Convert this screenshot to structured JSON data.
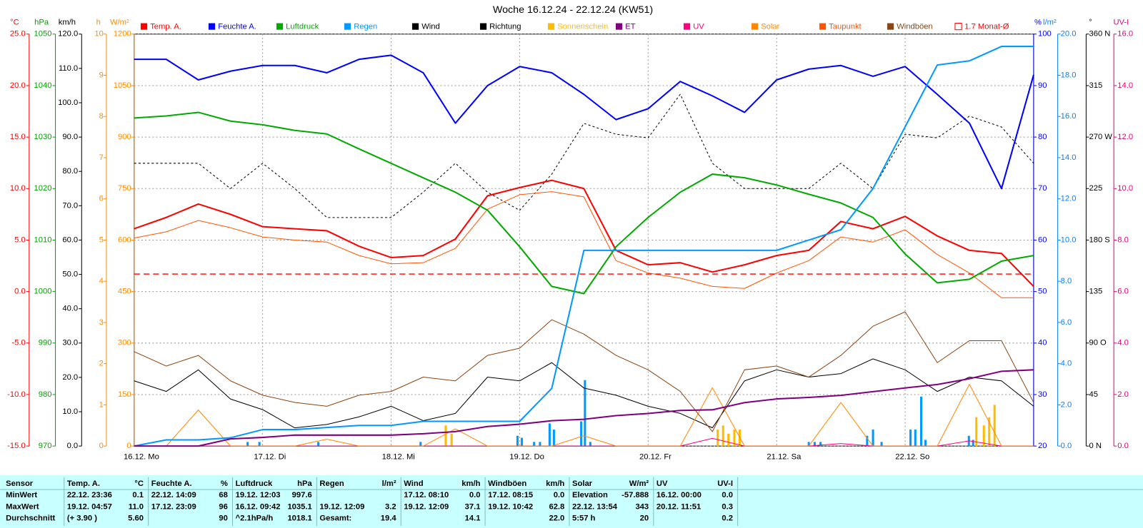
{
  "chart_data": {
    "type": "line",
    "title": "Woche 16.12.24 - 22.12.24 (KW51)",
    "xlim": [
      0,
      168
    ],
    "xticks": [
      {
        "value": 0,
        "label": "16.12. Mo"
      },
      {
        "value": 24,
        "label": "17.12. Di"
      },
      {
        "value": 48,
        "label": "18.12. Mi"
      },
      {
        "value": 72,
        "label": "19.12. Do"
      },
      {
        "value": 96,
        "label": "20.12. Fr"
      },
      {
        "value": 120,
        "label": "21.12. Sa"
      },
      {
        "value": 144,
        "label": "22.12. So"
      }
    ],
    "grid": true,
    "axes": [
      {
        "unit": "°C",
        "color": "#ff0000",
        "lim": [
          -15,
          25
        ],
        "ticks": [
          {
            "value": -15,
            "label": "-15.0"
          },
          {
            "value": -10,
            "label": "-10.0"
          },
          {
            "value": -5,
            "label": "-5.0"
          },
          {
            "value": 0,
            "label": "0.0"
          },
          {
            "value": 5,
            "label": "5.0"
          },
          {
            "value": 10,
            "label": "10.0"
          },
          {
            "value": 15,
            "label": "15.0"
          },
          {
            "value": 20,
            "label": "20.0"
          },
          {
            "value": 25,
            "label": "25.0"
          }
        ]
      },
      {
        "unit": "hPa",
        "color": "#00a000",
        "lim": [
          970,
          1050
        ],
        "ticks": [
          970,
          980,
          990,
          1000,
          1010,
          1020,
          1030,
          1040,
          1050
        ]
      },
      {
        "unit": "km/h",
        "color": "#000000",
        "lim": [
          0,
          120
        ],
        "ticks": [
          {
            "value": 0,
            "label": "0.0"
          },
          {
            "value": 10,
            "label": "10.0"
          },
          {
            "value": 20,
            "label": "20.0"
          },
          {
            "value": 30,
            "label": "30.0"
          },
          {
            "value": 40,
            "label": "40.0"
          },
          {
            "value": 50,
            "label": "50.0"
          },
          {
            "value": 60,
            "label": "60.0"
          },
          {
            "value": 70,
            "label": "70.0"
          },
          {
            "value": 80,
            "label": "80.0"
          },
          {
            "value": 90,
            "label": "90.0"
          },
          {
            "value": 100,
            "label": "100.0"
          },
          {
            "value": 110,
            "label": "110.0"
          },
          {
            "value": 120,
            "label": "120.0"
          }
        ]
      },
      {
        "unit": "h",
        "color": "#ff8c00",
        "lim": [
          0,
          10
        ],
        "ticks": [
          0,
          1,
          2,
          3,
          4,
          5,
          6,
          7,
          8,
          9,
          10
        ]
      },
      {
        "unit": "W/m²",
        "color": "#ff8c00",
        "lim": [
          0,
          1200
        ],
        "ticks": [
          0,
          150,
          300,
          450,
          600,
          750,
          900,
          1050,
          1200
        ]
      },
      {
        "unit": "%",
        "color": "#0000ff",
        "lim": [
          20,
          100
        ],
        "ticks": [
          20,
          30,
          40,
          50,
          60,
          70,
          80,
          90,
          100
        ]
      },
      {
        "unit": "l/m²",
        "color": "#0080ff",
        "lim": [
          0,
          20
        ],
        "ticks": [
          {
            "value": 0,
            "label": "0.0"
          },
          {
            "value": 2,
            "label": "2.0"
          },
          {
            "value": 4,
            "label": "4.0"
          },
          {
            "value": 6,
            "label": "6.0"
          },
          {
            "value": 8,
            "label": "8.0"
          },
          {
            "value": 10,
            "label": "10.0"
          },
          {
            "value": 12,
            "label": "12.0"
          },
          {
            "value": 14,
            "label": "14.0"
          },
          {
            "value": 16,
            "label": "16.0"
          },
          {
            "value": 18,
            "label": "18.0"
          },
          {
            "value": 20,
            "label": "20.0"
          }
        ]
      },
      {
        "unit": "°",
        "color": "#000000",
        "lim": [
          0,
          360
        ],
        "ticks": [
          {
            "value": 0,
            "label": "0 N"
          },
          45,
          {
            "value": 90,
            "label": "90 O"
          },
          135,
          {
            "value": 180,
            "label": "180 S"
          },
          225,
          {
            "value": 270,
            "label": "270 W"
          },
          315,
          {
            "value": 360,
            "label": "360 N"
          }
        ]
      },
      {
        "unit": "UV-I",
        "color": "#e0007f",
        "lim": [
          0,
          16
        ],
        "ticks": [
          {
            "value": 0,
            "label": "0.0"
          },
          {
            "value": 2,
            "label": "2.0"
          },
          {
            "value": 4,
            "label": "4.0"
          },
          {
            "value": 6,
            "label": "6.0"
          },
          {
            "value": 8,
            "label": "8.0"
          },
          {
            "value": 10,
            "label": "10.0"
          },
          {
            "value": 12,
            "label": "12.0"
          },
          {
            "value": 14,
            "label": "14.0"
          },
          {
            "value": 16,
            "label": "16.0"
          }
        ]
      }
    ],
    "x": [
      0,
      6,
      12,
      18,
      24,
      30,
      36,
      42,
      48,
      54,
      60,
      66,
      72,
      78,
      84,
      90,
      96,
      102,
      108,
      114,
      120,
      126,
      132,
      138,
      144,
      150,
      156,
      162,
      168
    ],
    "series": [
      {
        "name": "Temp. A.",
        "color": "#ff0000",
        "axis": 0,
        "style": "line",
        "width": 2,
        "values": [
          6.1,
          7.2,
          8.5,
          7.5,
          6.3,
          6.1,
          5.9,
          4.4,
          3.3,
          3.5,
          5.1,
          9.3,
          10.1,
          10.8,
          10.0,
          4.0,
          2.6,
          2.8,
          1.9,
          2.6,
          3.5,
          4.0,
          6.8,
          6.1,
          7.3,
          5.4,
          4.0,
          3.7,
          0.5
        ]
      },
      {
        "name": "Feuchte A.",
        "color": "#0000ff",
        "axis": 5,
        "style": "line",
        "width": 2,
        "values": [
          95.1,
          95.1,
          91.1,
          92.8,
          93.9,
          93.9,
          92.5,
          95.1,
          95.9,
          92.5,
          82.7,
          90.0,
          93.7,
          92.5,
          88.3,
          83.4,
          85.5,
          90.8,
          88.0,
          84.8,
          91.1,
          93.2,
          93.9,
          91.8,
          93.7,
          88.3,
          82.7,
          70.0,
          92.1
        ]
      },
      {
        "name": "Luftdruck",
        "color": "#00aa00",
        "axis": 1,
        "style": "line",
        "width": 2,
        "values": [
          1033.7,
          1034.1,
          1034.8,
          1033.1,
          1032.4,
          1031.3,
          1030.6,
          1027.7,
          1024.9,
          1022.1,
          1019.3,
          1015.8,
          1008.7,
          1001.0,
          999.6,
          1008.7,
          1014.4,
          1019.3,
          1022.8,
          1022.1,
          1020.7,
          1018.9,
          1017.2,
          1014.4,
          1007.3,
          1001.7,
          1002.4,
          1005.9,
          1007.0
        ]
      },
      {
        "name": "Regen",
        "color": "#0099ff",
        "axis": 6,
        "style": "line",
        "width": 2,
        "values": [
          0,
          0.3,
          0.3,
          0.4,
          0.8,
          0.8,
          0.9,
          1.0,
          1.0,
          1.2,
          1.2,
          1.2,
          1.2,
          2.8,
          9.5,
          9.5,
          9.5,
          9.5,
          9.5,
          9.5,
          9.5,
          10.0,
          10.5,
          12.5,
          15.5,
          18.5,
          18.7,
          19.4,
          19.4
        ],
        "bars_x": [
          21.2,
          23.4,
          34.4,
          53.5,
          71.6,
          72.4,
          74.7,
          75.8,
          77.6,
          78.4,
          83.5,
          84.2,
          85.2,
          126,
          127.1,
          128.2,
          136.9,
          138,
          139.6,
          145,
          145.9,
          147,
          147.8,
          155.9,
          156.7
        ],
        "bars": [
          0.2,
          0.2,
          0.2,
          0.2,
          0.5,
          0.4,
          0.2,
          0.2,
          1.1,
          0.8,
          1.2,
          3.2,
          0.2,
          0.2,
          0.2,
          0.2,
          0.5,
          0.8,
          0.2,
          0.8,
          0.8,
          2.4,
          0.3,
          0.5,
          0.3
        ]
      },
      {
        "name": "Wind",
        "color": "#000000",
        "axis": 2,
        "style": "line",
        "width": 1,
        "values": [
          19.0,
          15.9,
          22.2,
          13.7,
          10.6,
          5.3,
          6.3,
          8.5,
          11.6,
          7.4,
          9.5,
          20.1,
          19.0,
          24.3,
          16.9,
          14.8,
          11.6,
          9.5,
          5.3,
          19.0,
          22.2,
          20.1,
          21.1,
          25.4,
          22.2,
          15.9,
          20.1,
          19.0,
          11.6
        ]
      },
      {
        "name": "Richtung",
        "color": "#000000",
        "axis": 7,
        "style": "dashed",
        "width": 1,
        "values": [
          247.1,
          247.1,
          247.1,
          225.0,
          247.1,
          225.0,
          199.7,
          199.7,
          199.7,
          221.8,
          247.1,
          221.8,
          206.0,
          237.6,
          282.0,
          272.5,
          269.3,
          307.4,
          247.1,
          225.0,
          225.0,
          225.0,
          247.1,
          225.0,
          272.5,
          269.3,
          288.3,
          278.8,
          247.1
        ]
      },
      {
        "name": "Sonnenschein",
        "color": "#ffbb00",
        "axis": 3,
        "style": "bars",
        "width": 1,
        "bars_x": [
          58.2,
          59.3,
          109,
          110,
          111,
          112.1,
          113.1,
          157.3,
          158.7,
          159.7,
          160.7
        ],
        "bars": [
          0.5,
          0.3,
          0.4,
          0.5,
          0.3,
          0.4,
          0.4,
          0.7,
          0.5,
          0.7,
          1.0
        ]
      },
      {
        "name": "ET",
        "color": "#800080",
        "axis": 6,
        "style": "line",
        "width": 2,
        "values": [
          0,
          0,
          0,
          0.35,
          0.42,
          0.53,
          0.53,
          0.53,
          0.53,
          0.6,
          0.7,
          0.95,
          1.06,
          1.23,
          1.3,
          1.48,
          1.58,
          1.73,
          1.76,
          2.11,
          2.29,
          2.36,
          2.46,
          2.64,
          2.82,
          2.99,
          3.27,
          3.63,
          3.7
        ]
      },
      {
        "name": "UV",
        "color": "#ff0080",
        "axis": 8,
        "style": "line",
        "width": 1,
        "values": [
          0,
          0,
          0,
          0,
          0,
          0,
          0,
          0,
          0,
          0,
          0,
          0,
          0,
          0,
          0,
          0,
          0,
          0,
          0.3,
          0,
          0,
          0,
          0.1,
          0,
          0,
          0,
          0.2,
          0,
          0
        ]
      },
      {
        "name": "Solar",
        "color": "#ff8800",
        "axis": 4,
        "style": "line",
        "width": 1,
        "values": [
          0,
          0,
          105,
          0,
          0,
          0,
          20,
          0,
          0,
          0,
          50,
          0,
          0,
          0,
          30,
          0,
          0,
          0,
          170,
          0,
          0,
          0,
          127,
          0,
          0,
          0,
          180,
          0,
          0
        ]
      },
      {
        "name": "Taupunkt",
        "color": "#ff5500",
        "axis": 0,
        "style": "line",
        "width": 1,
        "values": [
          5.2,
          5.8,
          6.9,
          6.2,
          5.3,
          5.0,
          4.8,
          3.5,
          2.7,
          2.8,
          4.2,
          8.0,
          9.4,
          9.7,
          9.2,
          3.0,
          1.8,
          1.3,
          0.5,
          0.3,
          1.8,
          3.0,
          5.3,
          4.8,
          6.0,
          3.6,
          1.8,
          -0.6,
          -0.6
        ]
      },
      {
        "name": "Windböen",
        "color": "#8b4513",
        "axis": 2,
        "style": "line",
        "width": 1,
        "values": [
          27.5,
          23.3,
          26.4,
          19.0,
          14.8,
          12.7,
          11.6,
          14.8,
          15.9,
          20.1,
          19.0,
          26.4,
          28.5,
          36.8,
          32.6,
          26.4,
          22.2,
          15.9,
          4.2,
          22.2,
          23.3,
          20.1,
          26.4,
          34.9,
          39.1,
          24.3,
          30.7,
          30.7,
          12.7
        ]
      },
      {
        "name": "1.7 Monat-Ø",
        "color": "#ff0000",
        "axis": 0,
        "style": "hline",
        "width": 1,
        "value": 1.7
      }
    ]
  },
  "table": {
    "header": [
      "Sensor",
      "Temp. A.",
      "°C",
      "Feuchte A.",
      "%",
      "Luftdruck",
      "hPa",
      "Regen",
      "l/m²",
      "Wind",
      "km/h",
      "Windböen",
      "km/h",
      "Solar",
      "W/m²",
      "UV",
      "UV-I"
    ],
    "rows": [
      [
        "MinWert",
        "22.12.  23:36",
        "0.1",
        "22.12.  14:09",
        "68",
        "19.12.  12:03",
        "997.6",
        null,
        null,
        "17.12.  08:10",
        "0.0",
        "17.12.  08:15",
        "0.0",
        "Elevation",
        "-57.888",
        "16.12.  00:00",
        "0.0"
      ],
      [
        "MaxWert",
        "19.12.  04:57",
        "11.0",
        "17.12.  23:09",
        "96",
        "16.12.  09:42",
        "1035.1",
        "19.12.  12:09",
        "3.2",
        "19.12.  12:09",
        "37.1",
        "19.12.  10:42",
        "62.8",
        "22.12.  13:54",
        "343",
        "20.12.  11:51",
        "0.3"
      ],
      [
        "Durchschnitt",
        "(+ 3.90 )",
        "5.60",
        null,
        "90",
        "^2.1hPa/h",
        "1018.1",
        "Gesamt:",
        "19.4",
        null,
        "14.1",
        null,
        "22.0",
        "5:57 h",
        "20",
        null,
        "0.2"
      ]
    ]
  }
}
